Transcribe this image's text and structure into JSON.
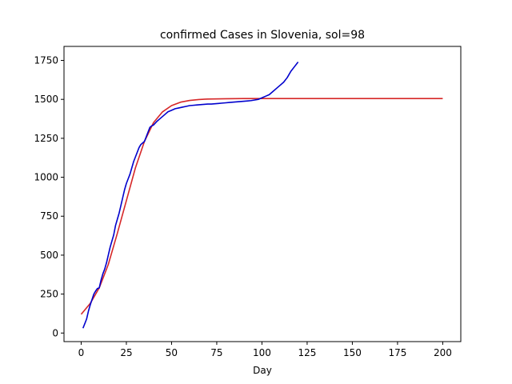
{
  "chart_data": {
    "type": "line",
    "title": "confirmed Cases in Slovenia, sol=98",
    "xlabel": "Day",
    "ylabel": "",
    "xlim": [
      -9.5,
      210
    ],
    "ylim": [
      -55,
      1840
    ],
    "xticks": [
      0,
      25,
      50,
      75,
      100,
      125,
      150,
      175,
      200
    ],
    "yticks": [
      0,
      250,
      500,
      750,
      1000,
      1250,
      1500,
      1750
    ],
    "grid": false,
    "legend": "none",
    "series": [
      {
        "color": "#d62728",
        "x": [
          0,
          5,
          10,
          15,
          20,
          25,
          30,
          35,
          40,
          45,
          50,
          55,
          60,
          65,
          70,
          80,
          90,
          100,
          120,
          150,
          175,
          200
        ],
        "y": [
          120,
          190,
          290,
          440,
          640,
          850,
          1060,
          1230,
          1350,
          1420,
          1460,
          1482,
          1493,
          1499,
          1502,
          1504,
          1505,
          1505,
          1505,
          1505,
          1505,
          1505
        ]
      },
      {
        "color": "#0000cd",
        "x": [
          1,
          2,
          3,
          4,
          5,
          6,
          7,
          8,
          9,
          10,
          11,
          12,
          13,
          14,
          15,
          16,
          17,
          18,
          19,
          20,
          21,
          22,
          23,
          24,
          25,
          26,
          27,
          28,
          29,
          30,
          31,
          32,
          33,
          34,
          35,
          36,
          37,
          38,
          39,
          40,
          42,
          44,
          46,
          48,
          50,
          52,
          54,
          56,
          58,
          60,
          62,
          64,
          66,
          68,
          70,
          72,
          74,
          76,
          78,
          80,
          82,
          84,
          86,
          88,
          90,
          92,
          94,
          96,
          98,
          100,
          102,
          104,
          106,
          108,
          110,
          112,
          114,
          116,
          118,
          120
        ],
        "y": [
          31,
          60,
          90,
          140,
          180,
          215,
          250,
          270,
          286,
          290,
          340,
          380,
          410,
          450,
          500,
          550,
          590,
          630,
          690,
          730,
          770,
          820,
          870,
          920,
          960,
          990,
          1020,
          1060,
          1100,
          1130,
          1160,
          1190,
          1210,
          1220,
          1230,
          1260,
          1290,
          1320,
          1330,
          1335,
          1360,
          1380,
          1400,
          1420,
          1430,
          1440,
          1445,
          1450,
          1455,
          1460,
          1462,
          1464,
          1466,
          1468,
          1470,
          1470,
          1472,
          1474,
          1476,
          1478,
          1480,
          1482,
          1484,
          1486,
          1488,
          1490,
          1492,
          1496,
          1500,
          1510,
          1520,
          1530,
          1550,
          1570,
          1590,
          1610,
          1640,
          1680,
          1710,
          1740
        ]
      }
    ]
  }
}
